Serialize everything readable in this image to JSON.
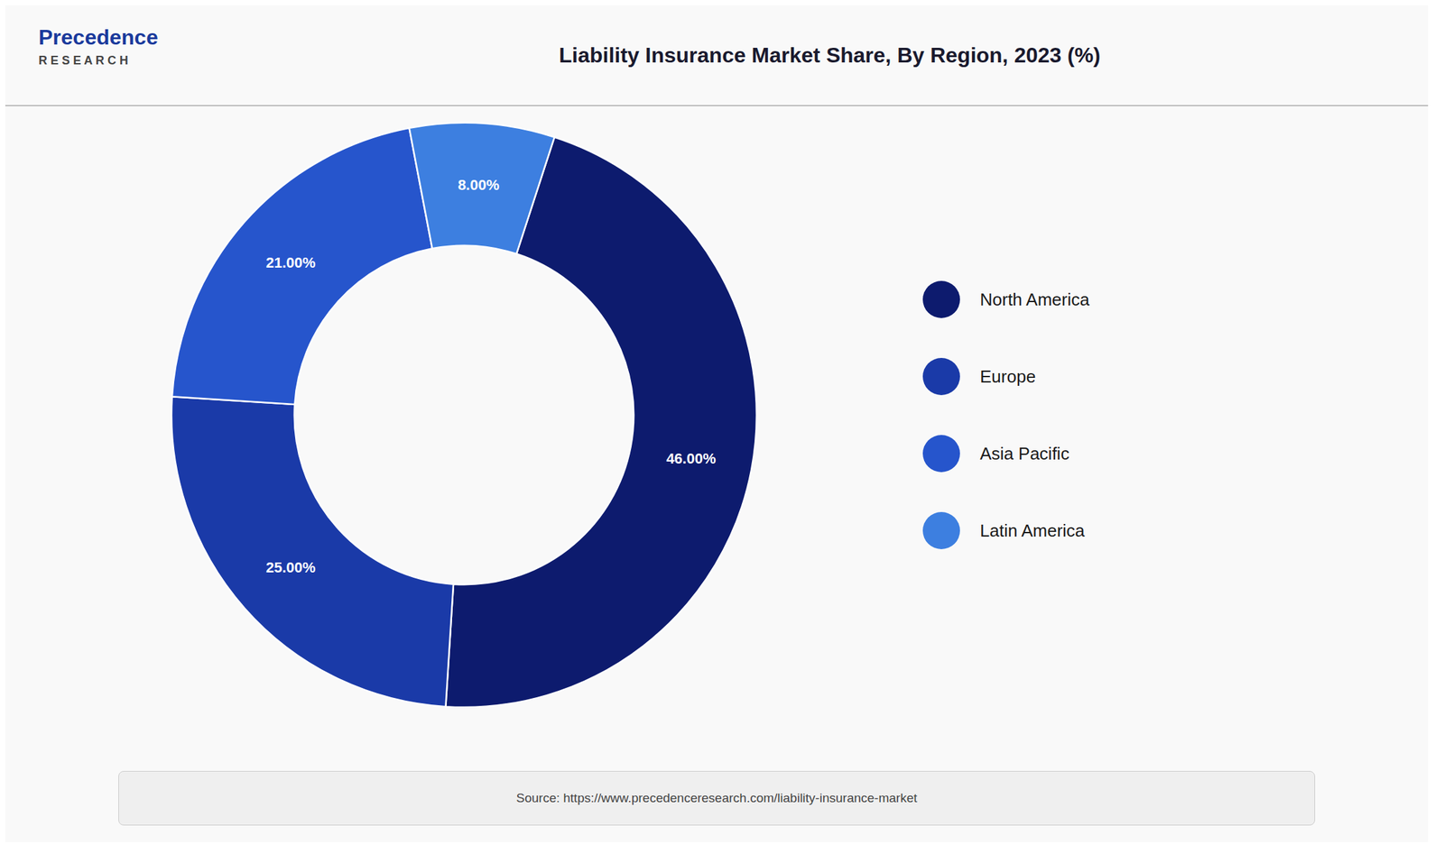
{
  "chart_data": {
    "type": "pie",
    "title": "Liability Insurance Market Share, By Region, 2023 (%)",
    "categories": [
      "North America",
      "Europe",
      "Asia Pacific",
      "Latin America"
    ],
    "values": [
      46.0,
      25.0,
      21.0,
      8.0
    ],
    "value_labels": [
      "46.00%",
      "25.00%",
      "21.00%",
      "8.00%"
    ],
    "colors": [
      "#0d1b6e",
      "#1a3aa8",
      "#2655cc",
      "#3d7fe0"
    ],
    "data_labels": true,
    "legend": "right",
    "annotations": [
      "Precedence",
      "R E S E A R C H",
      "Source: https://www.precedenceresearch.com/liability-insurance-market"
    ]
  }
}
